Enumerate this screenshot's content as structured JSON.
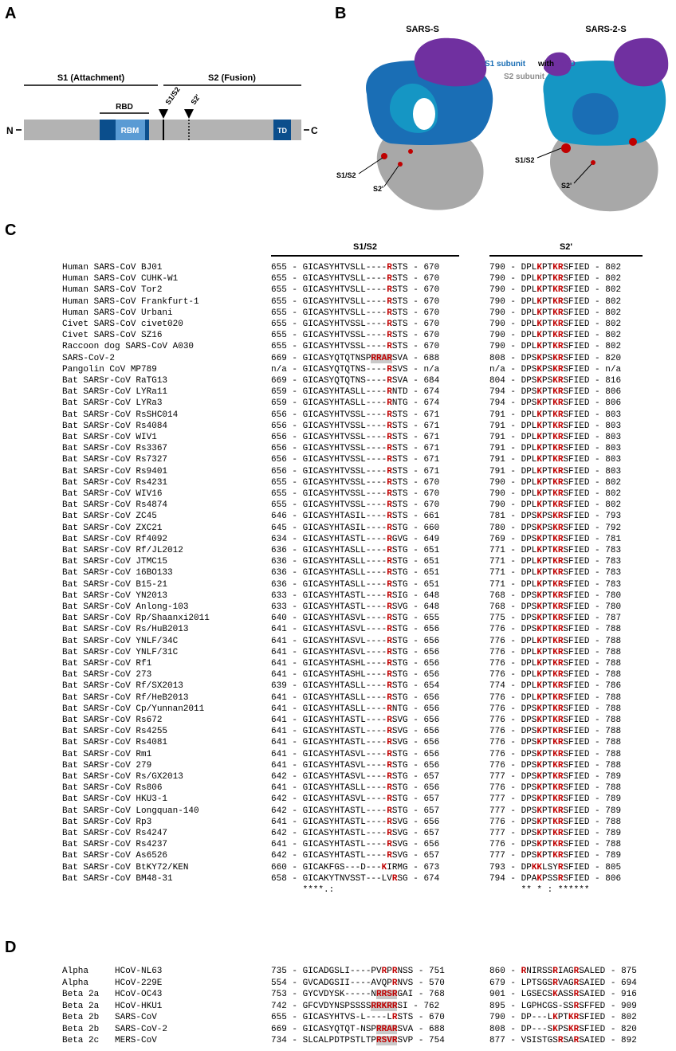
{
  "panels": {
    "a": "A",
    "b": "B",
    "c": "C",
    "d": "D"
  },
  "panelA": {
    "s1": "S1 (Attachment)",
    "s2": "S2 (Fusion)",
    "rbd": "RBD",
    "rbm": "RBM",
    "td": "TD",
    "n": "N",
    "c": "C",
    "s1s2": "S1/S2",
    "s2p": "S2'"
  },
  "panelB": {
    "sars_s": "SARS-S",
    "sars2_s": "SARS-2-S",
    "legend_s1": "S1 subunit",
    "legend_with": "with",
    "legend_rbd": "RBD",
    "legend_s2": "S2 subunit",
    "s1s2": "S1/S2",
    "s2p": "S2'",
    "colors": {
      "s1": "#1a6eb5",
      "s1b": "#1596c4",
      "rbd": "#7030a0",
      "s2": "#a8a8a8",
      "site": "#c00000"
    }
  },
  "panelC": {
    "header_s1s2": "S1/S2",
    "header_s2p": "S2'",
    "rows": [
      {
        "name": "Human SARS-CoV BJ01",
        "s1": "655 - GICASYHTVSLL----[R]STS - 670",
        "s2": "790 - DPL[K]PT[KR]SFIED - 802"
      },
      {
        "name": "Human SARS-CoV CUHK-W1",
        "s1": "655 - GICASYHTVSLL----[R]STS - 670",
        "s2": "790 - DPL[K]PT[KR]SFIED - 802"
      },
      {
        "name": "Human SARS-CoV Tor2",
        "s1": "655 - GICASYHTVSLL----[R]STS - 670",
        "s2": "790 - DPL[K]PT[KR]SFIED - 802"
      },
      {
        "name": "Human SARS-CoV Frankfurt-1",
        "s1": "655 - GICASYHTVSLL----[R]STS - 670",
        "s2": "790 - DPL[K]PT[KR]SFIED - 802"
      },
      {
        "name": "Human SARS-CoV Urbani",
        "s1": "655 - GICASYHTVSLL----[R]STS - 670",
        "s2": "790 - DPL[K]PT[KR]SFIED - 802"
      },
      {
        "name": "Civet SARS-CoV civet020",
        "s1": "655 - GICASYHTVSSL----[R]STS - 670",
        "s2": "790 - DPL[K]PT[KR]SFIED - 802"
      },
      {
        "name": "Civet SARS-CoV SZ16",
        "s1": "655 - GICASYHTVSSL----[R]STS - 670",
        "s2": "790 - DPL[K]PT[KR]SFIED - 802"
      },
      {
        "name": "Raccoon dog SARS-CoV A030",
        "s1": "655 - GICASYHTVSSL----[R]STS - 670",
        "s2": "790 - DPL[K]PT[KR]SFIED - 802"
      },
      {
        "name": "SARS-CoV-2",
        "s1": "669 - GICASYQTQTNSP{RRAR}SVA - 688",
        "s2": "808 - DPS[K]PS[KR]SFIED - 820"
      },
      {
        "name": "Pangolin CoV MP789",
        "s1": "n/a - GICASYQTQTNS----[R]SVS - n/a",
        "s2": "n/a - DPS[K]PS[KR]SFIED - n/a"
      },
      {
        "name": "Bat SARSr-CoV RaTG13",
        "s1": "669 - GICASYQTQTNS----[R]SVA - 684",
        "s2": "804 - DPS[K]PS[KR]SFIED - 816"
      },
      {
        "name": "Bat SARSr-CoV LYRa11",
        "s1": "659 - GICASYHTASLL----[R]NTD - 674",
        "s2": "794 - DPS[K]PT[KR]SFIED - 806"
      },
      {
        "name": "Bat SARSr-CoV LYRa3",
        "s1": "659 - GICASYHTASLL----[R]NTG - 674",
        "s2": "794 - DPS[K]PT[KR]SFIED - 806"
      },
      {
        "name": "Bat SARSr-CoV RsSHC014",
        "s1": "656 - GICASYHTVSSL----[R]STS - 671",
        "s2": "791 - DPL[K]PT[KR]SFIED - 803"
      },
      {
        "name": "Bat SARSr-CoV Rs4084",
        "s1": "656 - GICASYHTVSSL----[R]STS - 671",
        "s2": "791 - DPL[K]PT[KR]SFIED - 803"
      },
      {
        "name": "Bat SARSr-CoV WIV1",
        "s1": "656 - GICASYHTVSSL----[R]STS - 671",
        "s2": "791 - DPL[K]PT[KR]SFIED - 803"
      },
      {
        "name": "Bat SARSr-CoV Rs3367",
        "s1": "656 - GICASYHTVSSL----[R]STS - 671",
        "s2": "791 - DPL[K]PT[KR]SFIED - 803"
      },
      {
        "name": "Bat SARSr-CoV Rs7327",
        "s1": "656 - GICASYHTVSSL----[R]STS - 671",
        "s2": "791 - DPL[K]PT[KR]SFIED - 803"
      },
      {
        "name": "Bat SARSr-CoV Rs9401",
        "s1": "656 - GICASYHTVSSL----[R]STS - 671",
        "s2": "791 - DPL[K]PT[KR]SFIED - 803"
      },
      {
        "name": "Bat SARSr-CoV Rs4231",
        "s1": "655 - GICASYHTVSSL----[R]STS - 670",
        "s2": "790 - DPL[K]PT[KR]SFIED - 802"
      },
      {
        "name": "Bat SARSr-CoV WIV16",
        "s1": "655 - GICASYHTVSSL----[R]STS - 670",
        "s2": "790 - DPL[K]PT[KR]SFIED - 802"
      },
      {
        "name": "Bat SARSr-CoV Rs4874",
        "s1": "655 - GICASYHTVSSL----[R]STS - 670",
        "s2": "790 - DPL[K]PT[KR]SFIED - 802"
      },
      {
        "name": "Bat SARSr-CoV ZC45",
        "s1": "646 - GICASYHTASIL----[R]STS - 661",
        "s2": "781 - DPS[K]PS[KR]SFIED - 793"
      },
      {
        "name": "Bat SARSr-CoV ZXC21",
        "s1": "645 - GICASYHTASIL----[R]STG - 660",
        "s2": "780 - DPS[K]PS[KR]SFIED - 792"
      },
      {
        "name": "Bat SARSr-CoV Rf4092",
        "s1": "634 - GICASYHTASTL----[R]GVG - 649",
        "s2": "769 - DPS[K]PT[KR]SFIED - 781"
      },
      {
        "name": "Bat SARSr-CoV Rf/JL2012",
        "s1": "636 - GICASYHTASLL----[R]STG - 651",
        "s2": "771 - DPL[K]PT[KR]SFIED - 783"
      },
      {
        "name": "Bat SARSr-CoV JTMC15",
        "s1": "636 - GICASYHTASLL----[R]STG - 651",
        "s2": "771 - DPL[K]PT[KR]SFIED - 783"
      },
      {
        "name": "Bat SARSr-CoV 16BO133",
        "s1": "636 - GICASYHTASLL----[R]STG - 651",
        "s2": "771 - DPL[K]PT[KR]SFIED - 783"
      },
      {
        "name": "Bat SARSr-CoV B15-21",
        "s1": "636 - GICASYHTASLL----[R]STG - 651",
        "s2": "771 - DPL[K]PT[KR]SFIED - 783"
      },
      {
        "name": "Bat SARSr-CoV YN2013",
        "s1": "633 - GICASYHTASTL----[R]SIG - 648",
        "s2": "768 - DPS[K]PT[KR]SFIED - 780"
      },
      {
        "name": "Bat SARSr-CoV Anlong-103",
        "s1": "633 - GICASYHTASTL----[R]SVG - 648",
        "s2": "768 - DPS[K]PT[KR]SFIED - 780"
      },
      {
        "name": "Bat SARSr-CoV Rp/Shaanxi2011",
        "s1": "640 - GICASYHTASVL----[R]STG - 655",
        "s2": "775 - DPS[K]PT[KR]SFIED - 787"
      },
      {
        "name": "Bat SARSr-CoV Rs/HuB2013",
        "s1": "641 - GICASYHTASVL----[R]STG - 656",
        "s2": "776 - DPS[K]PT[KR]SFIED - 788"
      },
      {
        "name": "Bat SARSr-CoV YNLF/34C",
        "s1": "641 - GICASYHTASVL----[R]STG - 656",
        "s2": "776 - DPL[K]PT[KR]SFIED - 788"
      },
      {
        "name": "Bat SARSr-CoV YNLF/31C",
        "s1": "641 - GICASYHTASVL----[R]STG - 656",
        "s2": "776 - DPL[K]PT[KR]SFIED - 788"
      },
      {
        "name": "Bat SARSr-CoV Rf1",
        "s1": "641 - GICASYHTASHL----[R]STG - 656",
        "s2": "776 - DPL[K]PT[KR]SFIED - 788"
      },
      {
        "name": "Bat SARSr-CoV 273",
        "s1": "641 - GICASYHTASHL----[R]STG - 656",
        "s2": "776 - DPL[K]PT[KR]SFIED - 788"
      },
      {
        "name": "Bat SARSr-CoV Rf/SX2013",
        "s1": "639 - GICASYHTASLL----[R]STG - 654",
        "s2": "774 - DPL[K]PT[KR]SFIED - 786"
      },
      {
        "name": "Bat SARSr-CoV Rf/HeB2013",
        "s1": "641 - GICASYHTASLL----[R]STG - 656",
        "s2": "776 - DPL[K]PT[KR]SFIED - 788"
      },
      {
        "name": "Bat SARSr-CoV Cp/Yunnan2011",
        "s1": "641 - GICASYHTASLL----[R]NTG - 656",
        "s2": "776 - DPS[K]PT[KR]SFIED - 788"
      },
      {
        "name": "Bat SARSr-CoV Rs672",
        "s1": "641 - GICASYHTASTL----[R]SVG - 656",
        "s2": "776 - DPS[K]PT[KR]SFIED - 788"
      },
      {
        "name": "Bat SARSr-CoV Rs4255",
        "s1": "641 - GICASYHTASTL----[R]SVG - 656",
        "s2": "776 - DPS[K]PT[KR]SFIED - 788"
      },
      {
        "name": "Bat SARSr-CoV Rs4081",
        "s1": "641 - GICASYHTASTL----[R]SVG - 656",
        "s2": "776 - DPS[K]PT[KR]SFIED - 788"
      },
      {
        "name": "Bat SARSr-CoV Rm1",
        "s1": "641 - GICASYHTASVL----[R]STG - 656",
        "s2": "776 - DPS[K]PT[KR]SFIED - 788"
      },
      {
        "name": "Bat SARSr-CoV 279",
        "s1": "641 - GICASYHTASVL----[R]STG - 656",
        "s2": "776 - DPS[K]PT[KR]SFIED - 788"
      },
      {
        "name": "Bat SARSr-CoV Rs/GX2013",
        "s1": "642 - GICASYHTASVL----[R]STG - 657",
        "s2": "777 - DPS[K]PT[KR]SFIED - 789"
      },
      {
        "name": "Bat SARSr-CoV Rs806",
        "s1": "641 - GICASYHTASLL----[R]STG - 656",
        "s2": "776 - DPS[K]PT[KR]SFIED - 788"
      },
      {
        "name": "Bat SARSr-CoV HKU3-1",
        "s1": "642 - GICASYHTASVL----[R]STG - 657",
        "s2": "777 - DPS[K]PT[KR]SFIED - 789"
      },
      {
        "name": "Bat SARSr-CoV Longquan-140",
        "s1": "642 - GICASYHTASTL----[R]STG - 657",
        "s2": "777 - DPS[K]PT[KR]SFIED - 789"
      },
      {
        "name": "Bat SARSr-CoV Rp3",
        "s1": "641 - GICASYHTASTL----[R]SVG - 656",
        "s2": "776 - DPS[K]PT[KR]SFIED - 788"
      },
      {
        "name": "Bat SARSr-CoV Rs4247",
        "s1": "642 - GICASYHTASTL----[R]SVG - 657",
        "s2": "777 - DPS[K]PT[KR]SFIED - 789"
      },
      {
        "name": "Bat SARSr-CoV Rs4237",
        "s1": "641 - GICASYHTASTL----[R]SVG - 656",
        "s2": "776 - DPS[K]PT[KR]SFIED - 788"
      },
      {
        "name": "Bat SARSr-CoV As6526",
        "s1": "642 - GICASYHTASTL----[R]SVG - 657",
        "s2": "777 - DPS[K]PT[KR]SFIED - 789"
      },
      {
        "name": "Bat SARSr-CoV BtKY72/KEN",
        "s1": "660 - GICAKFGS---D---[K]IRMG - 673",
        "s2": "793 - DP[KK]LSY[R]SFIED - 805"
      },
      {
        "name": "Bat SARSr-CoV BM48-31",
        "s1": "658 - GICAKYTNVSST---LV[R]SG - 674",
        "s2": "794 - DPA[K]PSS[R]SFIED - 806"
      }
    ],
    "consensus_s1": "      ****.:",
    "consensus_s2": "      ** * : ******"
  },
  "panelD": {
    "rows": [
      {
        "group": "Alpha",
        "name": "HCoV-NL63",
        "s1": "735 - GICADGSLI----PV[R]P[R]NSS - 751",
        "s2": "860 - [R]NIRSS[R]IAG[R]SALED - 875"
      },
      {
        "group": "Alpha",
        "name": "HCoV-229E",
        "s1": "554 - GVCADGSII----AVQP[R]NVS - 570",
        "s2": "679 - LPTSGS[R]VAG[R]SAIED - 694"
      },
      {
        "group": "Beta 2a",
        "name": "HCoV-OC43",
        "s1": "753 - GYCVDYSK-----N{RRSR}GAI - 768",
        "s2": "901 - LGSECS[K]ASS[R]SAIED - 916"
      },
      {
        "group": "Beta 2a",
        "name": "HCoV-HKU1",
        "s1": "742 - GFCVDYNSPSSSS{RRKRR}SI - 762",
        "s2": "895 - LGPHCGS-SS[R]SFFED - 909"
      },
      {
        "group": "Beta 2b",
        "name": "SARS-CoV",
        "s1": "655 - GICASYHTVS-L----L[R]STS - 670",
        "s2": "790 - DP---L[K]PT[KR]SFIED - 802"
      },
      {
        "group": "Beta 2b",
        "name": "SARS-CoV-2",
        "s1": "669 - GICASYQTQT-NSP{RRAR}SVA - 688",
        "s2": "808 - DP---S[K]PS[KR]SFIED - 820"
      },
      {
        "group": "Beta 2c",
        "name": "MERS-CoV",
        "s1": "734 - SLCALPDTPSTLTP{RSVR}SVP - 754",
        "s2": "877 - VSISTGS[R]SA[R]SAIED - 892"
      }
    ]
  }
}
